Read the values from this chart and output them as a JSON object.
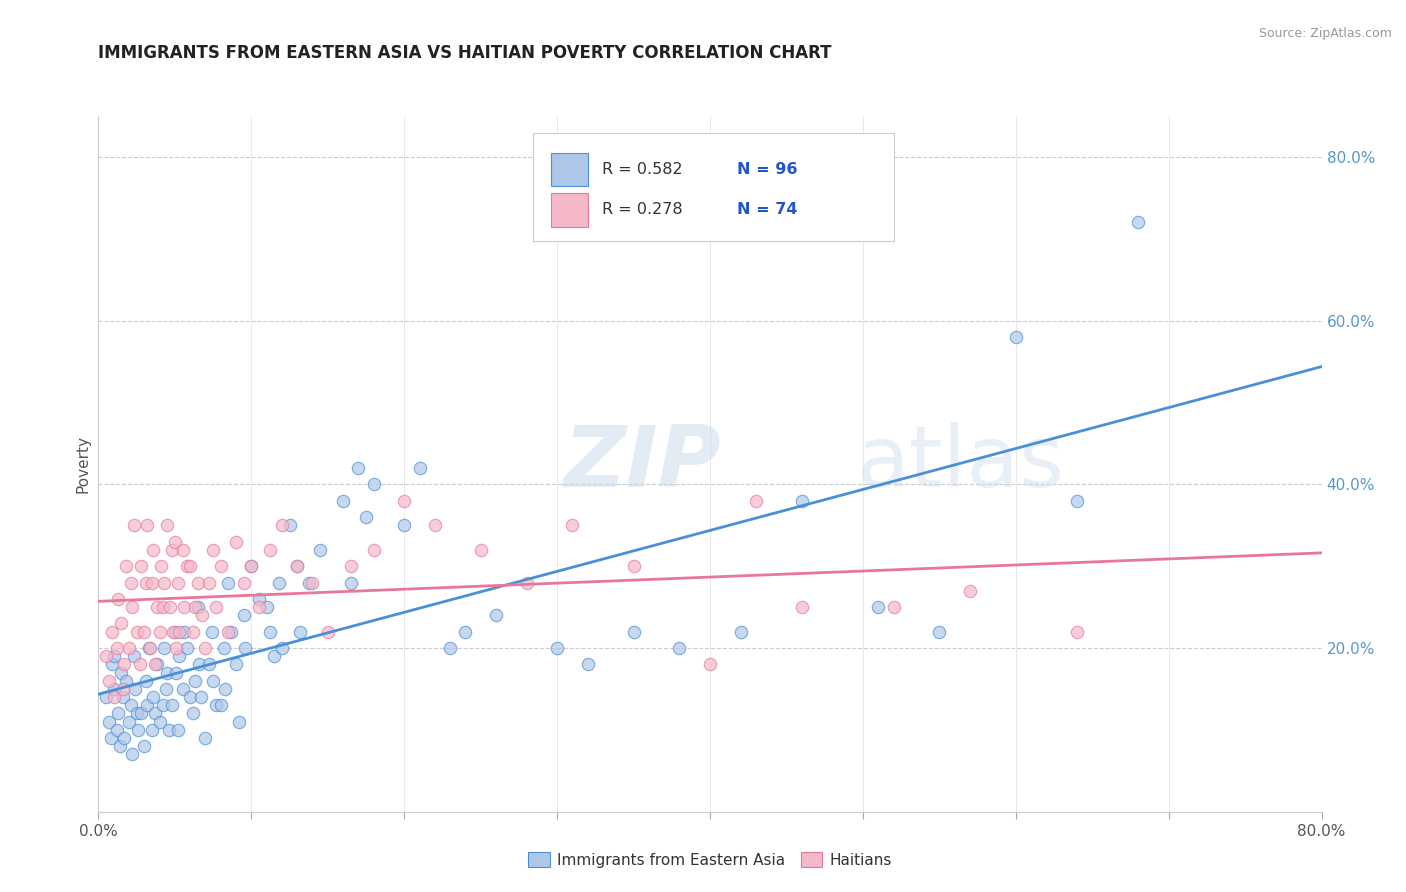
{
  "title": "IMMIGRANTS FROM EASTERN ASIA VS HAITIAN POVERTY CORRELATION CHART",
  "source": "Source: ZipAtlas.com",
  "ylabel": "Poverty",
  "xlim": [
    0.0,
    0.8
  ],
  "ylim": [
    0.0,
    0.85
  ],
  "xtick_pos": [
    0.0,
    0.1,
    0.2,
    0.3,
    0.4,
    0.5,
    0.6,
    0.7,
    0.8
  ],
  "xticklabels": [
    "0.0%",
    "",
    "",
    "",
    "",
    "",
    "",
    "",
    "80.0%"
  ],
  "ytick_right_positions": [
    0.0,
    0.2,
    0.4,
    0.6,
    0.8
  ],
  "ytick_right_labels": [
    "",
    "20.0%",
    "40.0%",
    "60.0%",
    "80.0%"
  ],
  "R1": 0.582,
  "N1": 96,
  "R2": 0.278,
  "N2": 74,
  "color_blue": "#aec6e8",
  "color_pink": "#f5b8c8",
  "line_blue": "#4a90d9",
  "line_pink": "#e8789a",
  "watermark_zip": "ZIP",
  "watermark_atlas": "atlas",
  "legend_label1": "Immigrants from Eastern Asia",
  "legend_label2": "Haitians",
  "blue_scatter": [
    [
      0.005,
      0.14
    ],
    [
      0.007,
      0.11
    ],
    [
      0.008,
      0.09
    ],
    [
      0.009,
      0.18
    ],
    [
      0.01,
      0.15
    ],
    [
      0.01,
      0.19
    ],
    [
      0.012,
      0.1
    ],
    [
      0.013,
      0.12
    ],
    [
      0.014,
      0.08
    ],
    [
      0.015,
      0.17
    ],
    [
      0.016,
      0.14
    ],
    [
      0.017,
      0.09
    ],
    [
      0.018,
      0.16
    ],
    [
      0.02,
      0.11
    ],
    [
      0.021,
      0.13
    ],
    [
      0.022,
      0.07
    ],
    [
      0.023,
      0.19
    ],
    [
      0.024,
      0.15
    ],
    [
      0.025,
      0.12
    ],
    [
      0.026,
      0.1
    ],
    [
      0.028,
      0.12
    ],
    [
      0.03,
      0.08
    ],
    [
      0.031,
      0.16
    ],
    [
      0.032,
      0.13
    ],
    [
      0.033,
      0.2
    ],
    [
      0.035,
      0.1
    ],
    [
      0.036,
      0.14
    ],
    [
      0.037,
      0.12
    ],
    [
      0.038,
      0.18
    ],
    [
      0.04,
      0.11
    ],
    [
      0.042,
      0.13
    ],
    [
      0.043,
      0.2
    ],
    [
      0.044,
      0.15
    ],
    [
      0.045,
      0.17
    ],
    [
      0.046,
      0.1
    ],
    [
      0.048,
      0.13
    ],
    [
      0.05,
      0.22
    ],
    [
      0.051,
      0.17
    ],
    [
      0.052,
      0.1
    ],
    [
      0.053,
      0.19
    ],
    [
      0.055,
      0.15
    ],
    [
      0.056,
      0.22
    ],
    [
      0.058,
      0.2
    ],
    [
      0.06,
      0.14
    ],
    [
      0.062,
      0.12
    ],
    [
      0.063,
      0.16
    ],
    [
      0.065,
      0.25
    ],
    [
      0.066,
      0.18
    ],
    [
      0.067,
      0.14
    ],
    [
      0.07,
      0.09
    ],
    [
      0.072,
      0.18
    ],
    [
      0.074,
      0.22
    ],
    [
      0.075,
      0.16
    ],
    [
      0.077,
      0.13
    ],
    [
      0.08,
      0.13
    ],
    [
      0.082,
      0.2
    ],
    [
      0.083,
      0.15
    ],
    [
      0.085,
      0.28
    ],
    [
      0.087,
      0.22
    ],
    [
      0.09,
      0.18
    ],
    [
      0.092,
      0.11
    ],
    [
      0.095,
      0.24
    ],
    [
      0.096,
      0.2
    ],
    [
      0.1,
      0.3
    ],
    [
      0.105,
      0.26
    ],
    [
      0.11,
      0.25
    ],
    [
      0.112,
      0.22
    ],
    [
      0.115,
      0.19
    ],
    [
      0.118,
      0.28
    ],
    [
      0.12,
      0.2
    ],
    [
      0.125,
      0.35
    ],
    [
      0.13,
      0.3
    ],
    [
      0.132,
      0.22
    ],
    [
      0.138,
      0.28
    ],
    [
      0.145,
      0.32
    ],
    [
      0.16,
      0.38
    ],
    [
      0.165,
      0.28
    ],
    [
      0.17,
      0.42
    ],
    [
      0.175,
      0.36
    ],
    [
      0.18,
      0.4
    ],
    [
      0.2,
      0.35
    ],
    [
      0.21,
      0.42
    ],
    [
      0.23,
      0.2
    ],
    [
      0.24,
      0.22
    ],
    [
      0.26,
      0.24
    ],
    [
      0.3,
      0.2
    ],
    [
      0.32,
      0.18
    ],
    [
      0.35,
      0.22
    ],
    [
      0.38,
      0.2
    ],
    [
      0.42,
      0.22
    ],
    [
      0.46,
      0.38
    ],
    [
      0.51,
      0.25
    ],
    [
      0.55,
      0.22
    ],
    [
      0.6,
      0.58
    ],
    [
      0.64,
      0.38
    ],
    [
      0.68,
      0.72
    ]
  ],
  "pink_scatter": [
    [
      0.005,
      0.19
    ],
    [
      0.007,
      0.16
    ],
    [
      0.009,
      0.22
    ],
    [
      0.01,
      0.14
    ],
    [
      0.012,
      0.2
    ],
    [
      0.013,
      0.26
    ],
    [
      0.015,
      0.23
    ],
    [
      0.016,
      0.15
    ],
    [
      0.017,
      0.18
    ],
    [
      0.018,
      0.3
    ],
    [
      0.02,
      0.2
    ],
    [
      0.021,
      0.28
    ],
    [
      0.022,
      0.25
    ],
    [
      0.023,
      0.35
    ],
    [
      0.025,
      0.22
    ],
    [
      0.027,
      0.18
    ],
    [
      0.028,
      0.3
    ],
    [
      0.03,
      0.22
    ],
    [
      0.031,
      0.28
    ],
    [
      0.032,
      0.35
    ],
    [
      0.034,
      0.2
    ],
    [
      0.035,
      0.28
    ],
    [
      0.036,
      0.32
    ],
    [
      0.037,
      0.18
    ],
    [
      0.038,
      0.25
    ],
    [
      0.04,
      0.22
    ],
    [
      0.041,
      0.3
    ],
    [
      0.042,
      0.25
    ],
    [
      0.043,
      0.28
    ],
    [
      0.045,
      0.35
    ],
    [
      0.047,
      0.25
    ],
    [
      0.048,
      0.32
    ],
    [
      0.049,
      0.22
    ],
    [
      0.05,
      0.33
    ],
    [
      0.051,
      0.2
    ],
    [
      0.052,
      0.28
    ],
    [
      0.053,
      0.22
    ],
    [
      0.055,
      0.32
    ],
    [
      0.056,
      0.25
    ],
    [
      0.058,
      0.3
    ],
    [
      0.06,
      0.3
    ],
    [
      0.062,
      0.22
    ],
    [
      0.063,
      0.25
    ],
    [
      0.065,
      0.28
    ],
    [
      0.068,
      0.24
    ],
    [
      0.07,
      0.2
    ],
    [
      0.072,
      0.28
    ],
    [
      0.075,
      0.32
    ],
    [
      0.077,
      0.25
    ],
    [
      0.08,
      0.3
    ],
    [
      0.085,
      0.22
    ],
    [
      0.09,
      0.33
    ],
    [
      0.095,
      0.28
    ],
    [
      0.1,
      0.3
    ],
    [
      0.105,
      0.25
    ],
    [
      0.112,
      0.32
    ],
    [
      0.12,
      0.35
    ],
    [
      0.13,
      0.3
    ],
    [
      0.14,
      0.28
    ],
    [
      0.15,
      0.22
    ],
    [
      0.165,
      0.3
    ],
    [
      0.18,
      0.32
    ],
    [
      0.2,
      0.38
    ],
    [
      0.22,
      0.35
    ],
    [
      0.25,
      0.32
    ],
    [
      0.28,
      0.28
    ],
    [
      0.31,
      0.35
    ],
    [
      0.35,
      0.3
    ],
    [
      0.4,
      0.18
    ],
    [
      0.43,
      0.38
    ],
    [
      0.46,
      0.25
    ],
    [
      0.52,
      0.25
    ],
    [
      0.57,
      0.27
    ],
    [
      0.64,
      0.22
    ]
  ]
}
